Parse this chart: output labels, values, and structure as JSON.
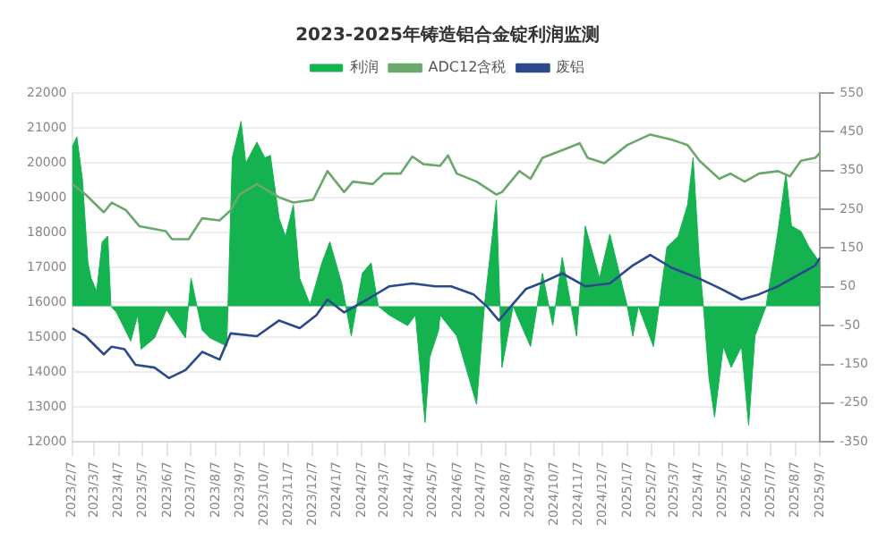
{
  "chart_data": {
    "type": "line",
    "title": "2023-2025年铸造铝合金锭利润监测",
    "xlim": [
      "2023-02-07",
      "2025-09-07"
    ],
    "xticks": [
      {
        "value": "2023-02-07",
        "label": "2023/2/7"
      },
      {
        "value": "2023-03-07",
        "label": "2023/3/7"
      },
      {
        "value": "2023-04-07",
        "label": "2023/4/7"
      },
      {
        "value": "2023-05-07",
        "label": "2023/5/7"
      },
      {
        "value": "2023-06-07",
        "label": "2023/6/7"
      },
      {
        "value": "2023-07-07",
        "label": "2023/7/7"
      },
      {
        "value": "2023-08-07",
        "label": "2023/8/7"
      },
      {
        "value": "2023-09-07",
        "label": "2023/9/7"
      },
      {
        "value": "2023-10-07",
        "label": "2023/10/7"
      },
      {
        "value": "2023-11-07",
        "label": "2023/11/7"
      },
      {
        "value": "2023-12-07",
        "label": "2023/12/7"
      },
      {
        "value": "2024-01-07",
        "label": "2024/1/7"
      },
      {
        "value": "2024-02-07",
        "label": "2024/2/7"
      },
      {
        "value": "2024-03-07",
        "label": "2024/3/7"
      },
      {
        "value": "2024-04-07",
        "label": "2024/4/7"
      },
      {
        "value": "2024-05-07",
        "label": "2024/5/7"
      },
      {
        "value": "2024-06-07",
        "label": "2024/6/7"
      },
      {
        "value": "2024-07-07",
        "label": "2024/7/7"
      },
      {
        "value": "2024-08-07",
        "label": "2024/8/7"
      },
      {
        "value": "2024-09-07",
        "label": "2024/9/7"
      },
      {
        "value": "2024-10-07",
        "label": "2024/10/7"
      },
      {
        "value": "2024-11-07",
        "label": "2024/11/7"
      },
      {
        "value": "2024-12-07",
        "label": "2024/12/7"
      },
      {
        "value": "2025-01-07",
        "label": "2025/1/7"
      },
      {
        "value": "2025-02-07",
        "label": "2025/2/7"
      },
      {
        "value": "2025-03-07",
        "label": "2025/3/7"
      },
      {
        "value": "2025-04-07",
        "label": "2025/4/7"
      },
      {
        "value": "2025-05-07",
        "label": "2025/5/7"
      },
      {
        "value": "2025-06-07",
        "label": "2025/6/7"
      },
      {
        "value": "2025-07-07",
        "label": "2025/7/7"
      },
      {
        "value": "2025-08-07",
        "label": "2025/8/7"
      },
      {
        "value": "2025-09-07",
        "label": "2025/9/7"
      }
    ],
    "ylim": [
      12000,
      22000
    ],
    "yticks": [
      12000,
      13000,
      14000,
      15000,
      16000,
      17000,
      18000,
      19000,
      20000,
      21000,
      22000
    ],
    "y2lim": [
      -350,
      550
    ],
    "y2ticks": [
      -350,
      -250,
      -150,
      -50,
      50,
      150,
      250,
      350,
      450,
      550
    ],
    "grid": "y",
    "legend": "top",
    "marker": "none",
    "series": [
      {
        "name": "利润",
        "type": "area",
        "axis": "y2",
        "color": "#14b350",
        "x": [
          "2023-02-07",
          "2023-02-13",
          "2023-02-20",
          "2023-02-27",
          "2023-03-03",
          "2023-03-10",
          "2023-03-17",
          "2023-03-24",
          "2023-03-28",
          "2023-04-04",
          "2023-04-22",
          "2023-05-01",
          "2023-05-05",
          "2023-05-22",
          "2023-06-06",
          "2023-06-30",
          "2023-07-07",
          "2023-07-21",
          "2023-07-31",
          "2023-08-21",
          "2023-08-28",
          "2023-09-08",
          "2023-09-14",
          "2023-09-28",
          "2023-10-08",
          "2023-10-15",
          "2023-10-26",
          "2023-11-03",
          "2023-11-13",
          "2023-11-21",
          "2023-12-04",
          "2023-12-19",
          "2023-12-29",
          "2024-01-13",
          "2024-01-25",
          "2024-02-08",
          "2024-02-19",
          "2024-02-28",
          "2024-03-13",
          "2024-04-05",
          "2024-04-15",
          "2024-04-22",
          "2024-04-27",
          "2024-05-03",
          "2024-05-14",
          "2024-05-16",
          "2024-06-06",
          "2024-07-01",
          "2024-07-11",
          "2024-07-26",
          "2024-08-02",
          "2024-08-16",
          "2024-09-07",
          "2024-09-22",
          "2024-10-05",
          "2024-10-17",
          "2024-11-04",
          "2024-11-15",
          "2024-12-03",
          "2024-12-16",
          "2025-01-07",
          "2025-01-14",
          "2025-01-21",
          "2025-02-09",
          "2025-02-16",
          "2025-02-26",
          "2025-03-12",
          "2025-03-24",
          "2025-03-31",
          "2025-04-08",
          "2025-04-13",
          "2025-04-20",
          "2025-04-27",
          "2025-05-08",
          "2025-05-18",
          "2025-05-31",
          "2025-06-09",
          "2025-06-17",
          "2025-07-01",
          "2025-07-16",
          "2025-07-26",
          "2025-08-02",
          "2025-08-14",
          "2025-08-24",
          "2025-09-07"
        ],
        "values": [
          410,
          437,
          328,
          112,
          72,
          39,
          166,
          181,
          0,
          -16,
          -90,
          -21,
          -111,
          -82,
          -9,
          -82,
          72,
          -62,
          -82,
          -103,
          383,
          477,
          369,
          423,
          383,
          389,
          227,
          180,
          261,
          72,
          4,
          112,
          166,
          58,
          -77,
          85,
          112,
          0,
          -23,
          -50,
          -23,
          -185,
          -300,
          -131,
          -63,
          -23,
          -77,
          -253,
          4,
          274,
          -158,
          0,
          -104,
          85,
          -50,
          126,
          -77,
          207,
          72,
          186,
          0,
          -77,
          0,
          -104,
          0,
          153,
          180,
          261,
          383,
          112,
          0,
          -185,
          -286,
          -104,
          -158,
          -104,
          -307,
          -77,
          0,
          193,
          342,
          207,
          193,
          153,
          112
        ]
      },
      {
        "name": "ADC12含税",
        "type": "line",
        "color": "#6aa86e",
        "x": [
          "2023-02-07",
          "2023-02-24",
          "2023-03-19",
          "2023-03-29",
          "2023-04-16",
          "2023-05-03",
          "2023-06-05",
          "2023-06-13",
          "2023-07-04",
          "2023-07-21",
          "2023-08-12",
          "2023-08-26",
          "2023-09-06",
          "2023-09-28",
          "2023-10-26",
          "2023-11-13",
          "2023-12-08",
          "2023-12-26",
          "2024-01-16",
          "2024-01-27",
          "2024-02-21",
          "2024-03-06",
          "2024-03-27",
          "2024-04-11",
          "2024-04-25",
          "2024-05-16",
          "2024-05-26",
          "2024-06-06",
          "2024-07-01",
          "2024-07-26",
          "2024-08-02",
          "2024-08-24",
          "2024-09-07",
          "2024-09-22",
          "2024-10-17",
          "2024-11-08",
          "2024-11-18",
          "2024-12-09",
          "2025-01-07",
          "2025-02-05",
          "2025-03-04",
          "2025-03-24",
          "2025-04-08",
          "2025-05-03",
          "2025-05-17",
          "2025-06-04",
          "2025-06-22",
          "2025-07-16",
          "2025-07-31",
          "2025-08-14",
          "2025-09-01",
          "2025-09-07"
        ],
        "values": [
          19390,
          19090,
          18580,
          18860,
          18640,
          18180,
          18040,
          17810,
          17810,
          18410,
          18350,
          18640,
          19090,
          19390,
          19010,
          18860,
          18940,
          19760,
          19160,
          19460,
          19390,
          19690,
          19690,
          20180,
          19960,
          19910,
          20210,
          19690,
          19460,
          19090,
          19160,
          19760,
          19540,
          20140,
          20360,
          20560,
          20140,
          19990,
          20510,
          20810,
          20660,
          20510,
          20060,
          19540,
          19690,
          19460,
          19690,
          19760,
          19610,
          20060,
          20140,
          20290
        ]
      },
      {
        "name": "废铝",
        "type": "line",
        "color": "#2b4a8a",
        "x": [
          "2023-02-07",
          "2023-02-24",
          "2023-03-19",
          "2023-03-29",
          "2023-04-14",
          "2023-04-28",
          "2023-05-22",
          "2023-06-09",
          "2023-06-30",
          "2023-07-21",
          "2023-08-12",
          "2023-08-26",
          "2023-09-28",
          "2023-10-26",
          "2023-11-21",
          "2023-12-12",
          "2023-12-26",
          "2024-01-16",
          "2024-02-14",
          "2024-03-13",
          "2024-04-11",
          "2024-05-10",
          "2024-05-30",
          "2024-06-27",
          "2024-07-15",
          "2024-07-29",
          "2024-09-01",
          "2024-09-19",
          "2024-10-17",
          "2024-11-15",
          "2024-12-16",
          "2025-01-14",
          "2025-02-05",
          "2025-03-04",
          "2025-04-08",
          "2025-05-06",
          "2025-05-31",
          "2025-06-22",
          "2025-07-16",
          "2025-08-14",
          "2025-09-01",
          "2025-09-07"
        ],
        "values": [
          15260,
          15030,
          14510,
          14730,
          14660,
          14210,
          14130,
          13830,
          14060,
          14580,
          14360,
          15110,
          15030,
          15480,
          15260,
          15630,
          16080,
          15710,
          16080,
          16460,
          16540,
          16460,
          16460,
          16230,
          15860,
          15480,
          16380,
          16540,
          16830,
          16460,
          16540,
          17060,
          17360,
          16990,
          16680,
          16380,
          16080,
          16230,
          16460,
          16830,
          17060,
          17280
        ]
      }
    ]
  }
}
